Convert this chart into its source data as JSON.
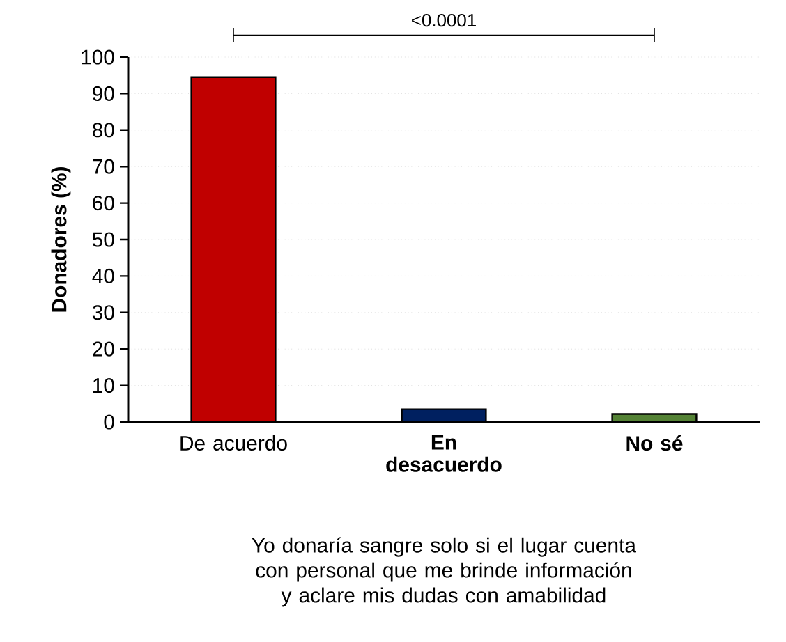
{
  "chart_data": {
    "type": "bar",
    "xlabel": "Yo donaría sangre solo si el lugar cuenta con personal que me brinde información y aclare mis dudas con amabilidad",
    "ylabel": "Donadores (%)",
    "categories": [
      "De acuerdo",
      "**En desacuerdo**",
      "**No sé**"
    ],
    "values": [
      94.5,
      3.5,
      2.2
    ],
    "colors": [
      "#c00000",
      "#002060",
      "#548235"
    ],
    "ylim": [
      0,
      100
    ],
    "yticks": [
      0,
      10,
      20,
      30,
      40,
      50,
      60,
      70,
      80,
      90,
      100
    ],
    "grid": "y",
    "annotations": [
      "<0.0001"
    ]
  }
}
